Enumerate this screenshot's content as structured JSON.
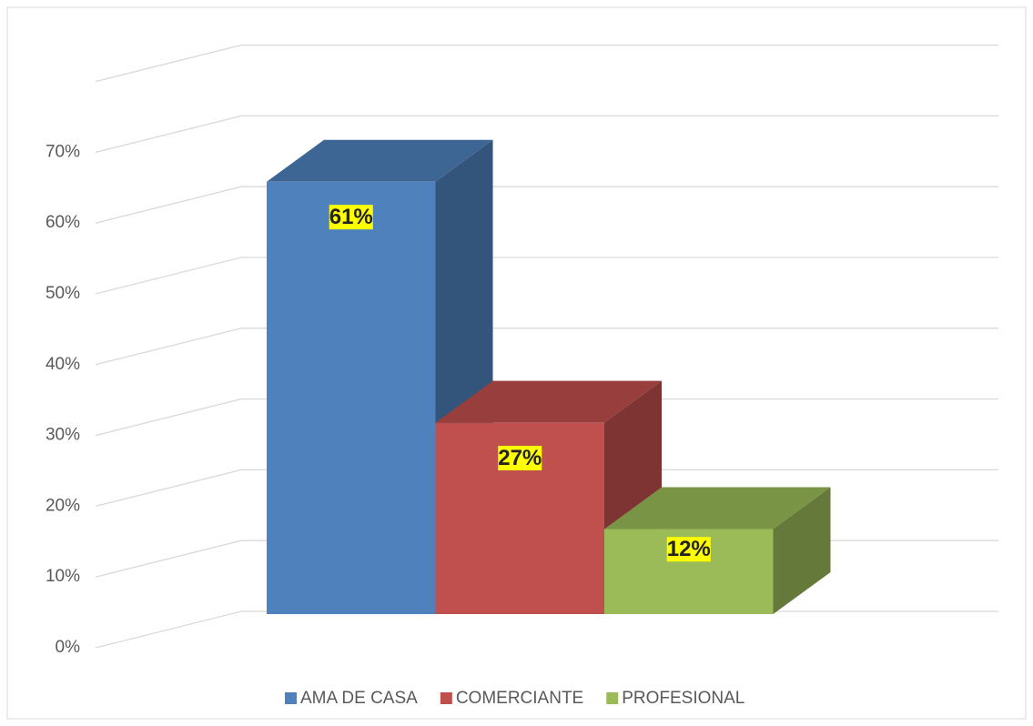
{
  "chart_data": {
    "type": "bar3d",
    "categories": [
      "AMA DE CASA",
      "COMERCIANTE",
      "PROFESIONAL"
    ],
    "series": [
      {
        "name": "AMA DE CASA",
        "color": "#4f81bd"
      },
      {
        "name": "COMERCIANTE",
        "color": "#c0504d"
      },
      {
        "name": "PROFESIONAL",
        "color": "#9bbb59"
      }
    ],
    "values": [
      61,
      27,
      12
    ],
    "value_labels": [
      "61%",
      "27%",
      "12%"
    ],
    "ylim": [
      0,
      80
    ],
    "yticks": [
      {
        "value": 0,
        "label": "0%"
      },
      {
        "value": 10,
        "label": "10%"
      },
      {
        "value": 20,
        "label": "20%"
      },
      {
        "value": 30,
        "label": "30%"
      },
      {
        "value": 40,
        "label": "40%"
      },
      {
        "value": 50,
        "label": "50%"
      },
      {
        "value": 60,
        "label": "60%"
      },
      {
        "value": 70,
        "label": "70%"
      }
    ],
    "grid": true,
    "legend": "bottom"
  }
}
